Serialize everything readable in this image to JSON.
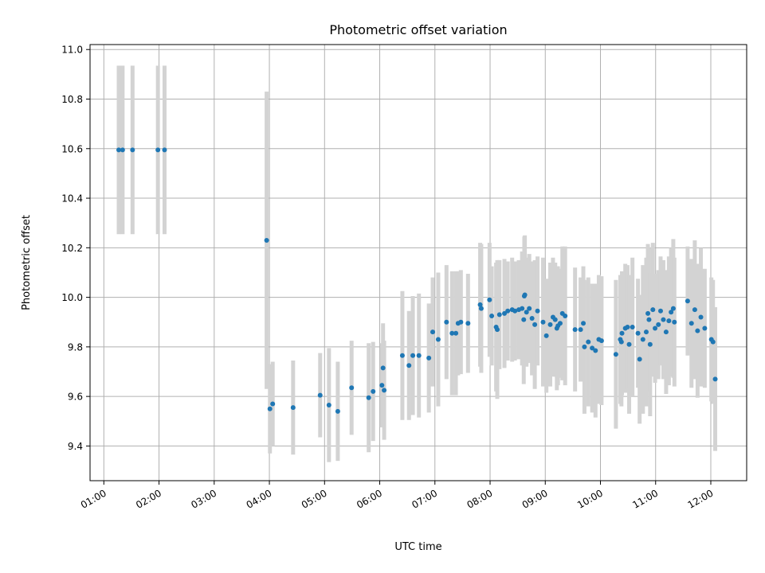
{
  "chart_data": {
    "type": "scatter",
    "title": "Photometric offset variation",
    "xlabel": "UTC time",
    "ylabel": "Photometric offset",
    "grid": true,
    "x_unit": "hours UTC",
    "xlim": [
      0.75,
      12.65
    ],
    "ylim": [
      9.26,
      11.02
    ],
    "x_ticks": [
      1,
      2,
      3,
      4,
      5,
      6,
      7,
      8,
      9,
      10,
      11,
      12
    ],
    "x_tick_labels": [
      "01:00",
      "02:00",
      "03:00",
      "04:00",
      "05:00",
      "06:00",
      "07:00",
      "08:00",
      "09:00",
      "10:00",
      "11:00",
      "12:00"
    ],
    "y_ticks": [
      9.4,
      9.6,
      9.8,
      10.0,
      10.2,
      10.4,
      10.6,
      10.8,
      11.0
    ],
    "y_tick_labels": [
      "9.4",
      "9.6",
      "9.8",
      "10.0",
      "10.2",
      "10.4",
      "10.6",
      "10.8",
      "11.0"
    ],
    "colors": {
      "marker": "#1f77b4",
      "errorbar": "#d3d3d3",
      "grid": "#b0b0b0"
    },
    "series": [
      {
        "x": [
          1.27,
          1.34,
          1.52,
          1.98,
          2.1,
          3.95,
          4.01,
          4.06,
          4.43,
          4.92,
          5.08,
          5.24,
          5.49,
          5.8,
          5.88,
          6.04,
          6.06,
          6.08,
          6.41,
          6.53,
          6.6,
          6.71,
          6.89,
          6.96,
          7.06,
          7.21,
          7.31,
          7.38,
          7.42,
          7.47,
          7.6,
          7.82,
          7.84,
          7.99,
          8.03,
          8.11,
          8.13,
          8.17,
          8.26,
          8.32,
          8.4,
          8.45,
          8.52,
          8.58,
          8.61,
          8.62,
          8.63,
          8.66,
          8.71,
          8.76,
          8.81,
          8.86,
          8.96,
          9.02,
          9.09,
          9.14,
          9.18,
          9.21,
          9.23,
          9.27,
          9.31,
          9.36,
          9.54,
          9.64,
          9.69,
          9.71,
          9.78,
          9.85,
          9.91,
          9.97,
          10.02,
          10.28,
          10.36,
          10.38,
          10.39,
          10.45,
          10.49,
          10.52,
          10.58,
          10.68,
          10.71,
          10.77,
          10.83,
          10.86,
          10.88,
          10.9,
          10.95,
          10.99,
          11.05,
          11.09,
          11.14,
          11.19,
          11.24,
          11.28,
          11.32,
          11.34,
          11.58,
          11.65,
          11.71,
          11.76,
          11.82,
          11.89,
          12.01,
          12.04,
          12.08
        ],
        "y": [
          10.595,
          10.595,
          10.595,
          10.595,
          10.595,
          10.23,
          9.55,
          9.57,
          9.555,
          9.605,
          9.565,
          9.54,
          9.635,
          9.595,
          9.62,
          9.645,
          9.715,
          9.625,
          9.765,
          9.725,
          9.765,
          9.765,
          9.755,
          9.86,
          9.83,
          9.9,
          9.855,
          9.855,
          9.895,
          9.9,
          9.895,
          9.97,
          9.955,
          9.99,
          9.925,
          9.88,
          9.87,
          9.93,
          9.935,
          9.945,
          9.95,
          9.945,
          9.95,
          9.955,
          9.91,
          10.005,
          10.01,
          9.94,
          9.955,
          9.915,
          9.89,
          9.945,
          9.9,
          9.845,
          9.89,
          9.92,
          9.91,
          9.875,
          9.885,
          9.895,
          9.935,
          9.925,
          9.87,
          9.87,
          9.895,
          9.8,
          9.82,
          9.795,
          9.785,
          9.83,
          9.825,
          9.77,
          9.83,
          9.82,
          9.855,
          9.875,
          9.88,
          9.81,
          9.88,
          9.855,
          9.75,
          9.83,
          9.86,
          9.935,
          9.91,
          9.81,
          9.95,
          9.875,
          9.89,
          9.945,
          9.91,
          9.86,
          9.905,
          9.94,
          9.955,
          9.9,
          9.985,
          9.895,
          9.95,
          9.865,
          9.92,
          9.875,
          9.83,
          9.82,
          9.67
        ],
        "yerr": [
          0.34,
          0.34,
          0.34,
          0.34,
          0.34,
          0.6,
          0.18,
          0.17,
          0.19,
          0.17,
          0.23,
          0.2,
          0.19,
          0.22,
          0.2,
          0.17,
          0.18,
          0.2,
          0.26,
          0.22,
          0.24,
          0.25,
          0.22,
          0.22,
          0.27,
          0.23,
          0.25,
          0.25,
          0.21,
          0.21,
          0.2,
          0.25,
          0.26,
          0.23,
          0.2,
          0.26,
          0.28,
          0.22,
          0.22,
          0.2,
          0.21,
          0.2,
          0.2,
          0.23,
          0.26,
          0.24,
          0.24,
          0.22,
          0.22,
          0.23,
          0.26,
          0.22,
          0.26,
          0.23,
          0.25,
          0.24,
          0.23,
          0.25,
          0.24,
          0.22,
          0.27,
          0.28,
          0.25,
          0.21,
          0.23,
          0.27,
          0.26,
          0.26,
          0.27,
          0.26,
          0.26,
          0.3,
          0.26,
          0.26,
          0.25,
          0.26,
          0.25,
          0.28,
          0.28,
          0.22,
          0.26,
          0.3,
          0.3,
          0.28,
          0.29,
          0.29,
          0.27,
          0.22,
          0.22,
          0.22,
          0.24,
          0.25,
          0.26,
          0.26,
          0.28,
          0.26,
          0.22,
          0.26,
          0.28,
          0.27,
          0.28,
          0.24,
          0.25,
          0.25,
          0.29
        ]
      }
    ]
  }
}
